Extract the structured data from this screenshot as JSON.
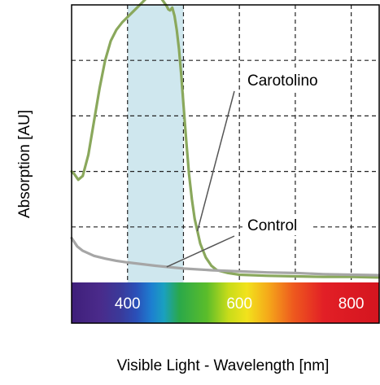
{
  "chart_data": {
    "type": "line",
    "xlabel": "Visible Light - Wavelength [nm]",
    "ylabel": "Absorption [AU]",
    "xlim": [
      300,
      850
    ],
    "ylim": [
      0,
      5
    ],
    "grid": true,
    "x_ticks": [
      {
        "value": 400,
        "label": "400"
      },
      {
        "value": 600,
        "label": "600"
      },
      {
        "value": 800,
        "label": "800"
      }
    ],
    "x_grid_values": [
      400,
      500,
      600,
      700,
      800
    ],
    "y_grid_values": [
      1,
      2,
      3,
      4
    ],
    "highlight_band": {
      "x_start": 400,
      "x_end": 500,
      "color": "#cfe7ee"
    },
    "spectrum_bar": true,
    "series": [
      {
        "name": "Carotolino",
        "color": "#8aa85c",
        "x": [
          300,
          305,
          312,
          320,
          330,
          340,
          350,
          360,
          370,
          380,
          390,
          400,
          410,
          420,
          430,
          440,
          445,
          450,
          455,
          460,
          465,
          470,
          473,
          476,
          480,
          484,
          488,
          492,
          496,
          500,
          505,
          510,
          515,
          520,
          530,
          540,
          550,
          560,
          580,
          600,
          650,
          700,
          750,
          800,
          850
        ],
        "y": [
          2.0,
          1.95,
          1.85,
          1.92,
          2.3,
          2.9,
          3.5,
          4.0,
          4.35,
          4.55,
          4.68,
          4.78,
          4.88,
          4.98,
          5.08,
          5.18,
          5.23,
          5.22,
          5.18,
          5.12,
          5.05,
          4.98,
          4.92,
          4.9,
          4.95,
          4.8,
          4.55,
          4.2,
          3.75,
          3.2,
          2.55,
          1.95,
          1.5,
          1.15,
          0.7,
          0.45,
          0.3,
          0.22,
          0.17,
          0.14,
          0.12,
          0.11,
          0.1,
          0.1,
          0.09
        ]
      },
      {
        "name": "Control",
        "color": "#a6a6a6",
        "x": [
          300,
          310,
          320,
          340,
          360,
          380,
          400,
          450,
          500,
          550,
          600,
          650,
          700,
          750,
          800,
          850
        ],
        "y": [
          0.8,
          0.65,
          0.57,
          0.48,
          0.43,
          0.39,
          0.36,
          0.3,
          0.25,
          0.22,
          0.2,
          0.18,
          0.17,
          0.15,
          0.14,
          0.13
        ]
      }
    ],
    "annotations": [
      {
        "text": "Carotolino",
        "series": "Carotolino"
      },
      {
        "text": "Control",
        "series": "Control"
      }
    ]
  }
}
